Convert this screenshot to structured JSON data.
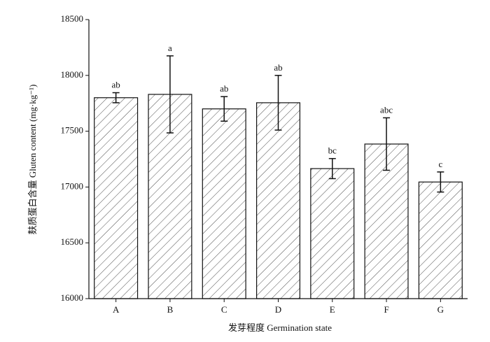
{
  "chart_data": {
    "type": "bar",
    "x_label": "发芽程度 Germination state",
    "y_label": "麸质蛋白含量 Gluten content (mg·kg⁻¹)",
    "categories": [
      "A",
      "B",
      "C",
      "D",
      "E",
      "F",
      "G"
    ],
    "values": [
      17800,
      17830,
      17700,
      17755,
      17165,
      17385,
      17045
    ],
    "errors": [
      45,
      345,
      110,
      245,
      90,
      235,
      90
    ],
    "annotations": [
      "ab",
      "a",
      "ab",
      "ab",
      "bc",
      "abc",
      "c"
    ],
    "ylim": [
      16000,
      18500
    ],
    "yticks": [
      16000,
      16500,
      17000,
      17500,
      18000,
      18500
    ],
    "color": "#ffffff",
    "hatch": true
  }
}
